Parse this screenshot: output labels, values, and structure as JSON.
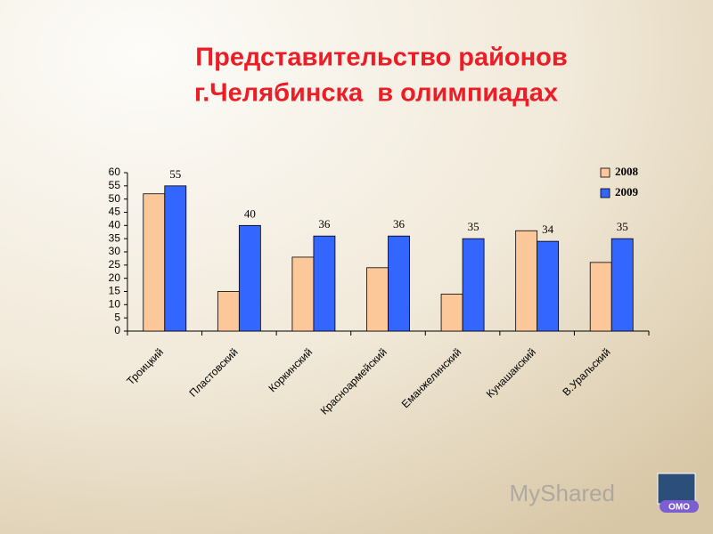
{
  "chart_data": {
    "type": "bar",
    "title": "Представительство районов",
    "subtitle": "г.Челябинска  в олимпиадах",
    "categories": [
      "Троицкий",
      "Пластовский",
      "Коркинский",
      "Красноармейский",
      "Еманжелинский",
      "Кунашакский",
      "В.Уральский"
    ],
    "series": [
      {
        "name": "2008",
        "color": "#fcc89a",
        "values": [
          52,
          15,
          28,
          24,
          14,
          38,
          26
        ],
        "data_labels": false
      },
      {
        "name": "2009",
        "color": "#3366ff",
        "values": [
          55,
          40,
          36,
          36,
          35,
          34,
          35
        ],
        "data_labels": true
      }
    ],
    "ylim": [
      0,
      60
    ],
    "yticks": [
      0,
      5,
      10,
      15,
      20,
      25,
      30,
      35,
      40,
      45,
      50,
      55,
      60
    ],
    "grid": false,
    "legend": "top-right"
  },
  "watermark": "MyShared",
  "logo": "ОМО"
}
